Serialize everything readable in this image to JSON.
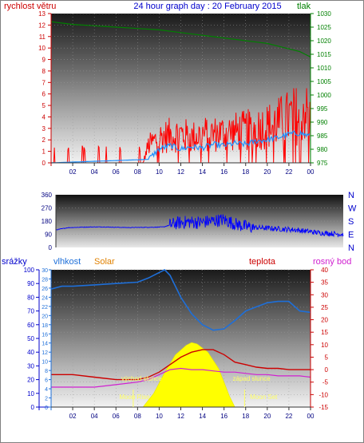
{
  "header": {
    "left_label": "rychlost větru",
    "title": "24 hour graph day : 20 February 2015",
    "right_label": "tlak"
  },
  "mid_header": {
    "left_labels": [
      "srážky",
      "vlhkost",
      "Solar"
    ],
    "right_labels": [
      "teplota",
      "rosný bod"
    ]
  },
  "colors": {
    "wind": "#ff0000",
    "wind_avg": "#1e90ff",
    "pressure": "#008000",
    "direction": "#0000ff",
    "humidity": "#1e6fd9",
    "temperature": "#cc0000",
    "dewpoint": "#d020d0",
    "solar": "#ffff00",
    "rain_axis": "#0000cc"
  },
  "x_ticks": [
    "02",
    "04",
    "06",
    "08",
    "10",
    "12",
    "14",
    "16",
    "18",
    "20",
    "22",
    "00"
  ],
  "annotations": {
    "sunrise": "východ slunce",
    "sunset": "západ slunce",
    "moonrise": "Moon Rise",
    "moonset": "Moon Set"
  },
  "chart_data": [
    {
      "type": "line",
      "title": "24 hour graph day : 20 February 2015",
      "ylabel": "rychlost větru",
      "y2label": "tlak",
      "xlim": [
        0,
        24
      ],
      "ylim": [
        0,
        13
      ],
      "y_ticks": [
        0,
        1,
        2,
        3,
        4,
        5,
        6,
        7,
        8,
        9,
        10,
        11,
        12,
        13
      ],
      "y2lim": [
        975,
        1030
      ],
      "y2_ticks": [
        975,
        980,
        985,
        990,
        995,
        1000,
        1005,
        1010,
        1015,
        1020,
        1025,
        1030
      ],
      "series": [
        {
          "name": "pressure",
          "axis": "right",
          "x": [
            0,
            2,
            4,
            6,
            8,
            10,
            12,
            14,
            15,
            16,
            17,
            18,
            19,
            20,
            21,
            22,
            23,
            24
          ],
          "values": [
            1027,
            1026,
            1025.5,
            1025,
            1024.5,
            1024,
            1023,
            1022,
            1021.5,
            1021,
            1020.5,
            1020,
            1019.5,
            1019,
            1018,
            1017,
            1016,
            1014
          ]
        },
        {
          "name": "gust",
          "axis": "left",
          "x": [
            0,
            8.5,
            9,
            10,
            11,
            12,
            13,
            14,
            15,
            16,
            17,
            18,
            19,
            20,
            21,
            22,
            23,
            23.5,
            24
          ],
          "values": [
            0,
            0,
            1.5,
            2.2,
            2.4,
            2.5,
            2.2,
            2.5,
            2.5,
            2.6,
            2.7,
            2.8,
            3,
            3.2,
            3.5,
            3.9,
            4.3,
            4.8,
            3.5
          ]
        },
        {
          "name": "average",
          "axis": "left",
          "x": [
            0,
            9,
            10,
            11,
            12,
            13,
            14,
            15,
            16,
            17,
            18,
            19,
            20,
            21,
            22,
            23,
            24
          ],
          "values": [
            0,
            0.3,
            1.2,
            1.5,
            1.2,
            1.4,
            1.3,
            1.6,
            1.5,
            1.7,
            1.6,
            1.9,
            2,
            2.2,
            2.5,
            2.6,
            2.3
          ]
        }
      ]
    },
    {
      "type": "line",
      "ylabel": "",
      "xlim": [
        0,
        24
      ],
      "ylim": [
        0,
        360
      ],
      "y_ticks": [
        0,
        90,
        180,
        270,
        360
      ],
      "y2_ticks": [
        "N",
        "W",
        "S",
        "E",
        "N"
      ],
      "series": [
        {
          "name": "direction",
          "x": [
            0,
            1,
            2,
            3,
            4,
            5,
            6,
            7,
            8,
            9,
            10,
            11,
            12,
            13,
            14,
            15,
            16,
            17,
            18,
            19,
            20,
            21,
            22,
            23,
            24
          ],
          "values": [
            120,
            135,
            138,
            140,
            140,
            138,
            136,
            137,
            138,
            140,
            165,
            175,
            170,
            180,
            190,
            160,
            140,
            135,
            130,
            125,
            120,
            110,
            100,
            95,
            90
          ]
        }
      ]
    },
    {
      "type": "area",
      "ylabel": "srážky",
      "xlim": [
        0,
        24
      ],
      "rain_ylim": [
        0,
        100
      ],
      "rain_ticks": [
        0,
        10,
        20,
        30,
        40,
        50,
        60,
        70,
        80,
        90,
        100
      ],
      "humidity_ticks": [
        0,
        2,
        4,
        6,
        8,
        10,
        12,
        14,
        16,
        18,
        20,
        22,
        24,
        26,
        28,
        30
      ],
      "temp_ylim": [
        -15,
        40
      ],
      "temp_ticks": [
        -15,
        -10,
        -5,
        0,
        5,
        10,
        15,
        20,
        25,
        30,
        35,
        40
      ],
      "series": [
        {
          "name": "vlhkost",
          "x": [
            0,
            1,
            2,
            4,
            6,
            8,
            9,
            10,
            10.5,
            11,
            12,
            13,
            14,
            15,
            16,
            17,
            18,
            19,
            20,
            21,
            22,
            23,
            24
          ],
          "values": [
            86,
            88,
            88,
            89,
            90,
            91,
            94,
            98,
            100,
            96,
            80,
            68,
            60,
            56,
            57,
            63,
            70,
            73,
            76,
            77,
            77,
            70,
            69
          ]
        },
        {
          "name": "teplota",
          "x": [
            0,
            2,
            4,
            6,
            8,
            9,
            10,
            11,
            12,
            13,
            14,
            15,
            16,
            17,
            18,
            19,
            20,
            21,
            22,
            23,
            24
          ],
          "values": [
            -2,
            -2,
            -3,
            -4,
            -4,
            -3,
            -1,
            2,
            5,
            7,
            8,
            8,
            6,
            3,
            2,
            1,
            0.5,
            0.5,
            0,
            0,
            0
          ]
        },
        {
          "name": "rosný bod",
          "x": [
            0,
            2,
            4,
            6,
            8,
            9,
            10,
            11,
            12,
            13,
            14,
            15,
            16,
            17,
            18,
            19,
            20,
            21,
            22,
            23,
            24
          ],
          "values": [
            -7,
            -7,
            -7,
            -6,
            -5,
            -4,
            -2,
            0,
            0.5,
            0,
            0,
            -0.5,
            -1,
            -1,
            -1.5,
            -2,
            -2,
            -2.5,
            -2.5,
            -2.5,
            -3
          ]
        },
        {
          "name": "Solar",
          "x": [
            8.5,
            9.5,
            10.5,
            11.5,
            12.5,
            13,
            13.5,
            14.5,
            15.5,
            16,
            16.5,
            17
          ],
          "values": [
            0,
            10,
            25,
            38,
            45,
            47,
            46,
            40,
            28,
            18,
            8,
            0
          ]
        }
      ]
    }
  ]
}
